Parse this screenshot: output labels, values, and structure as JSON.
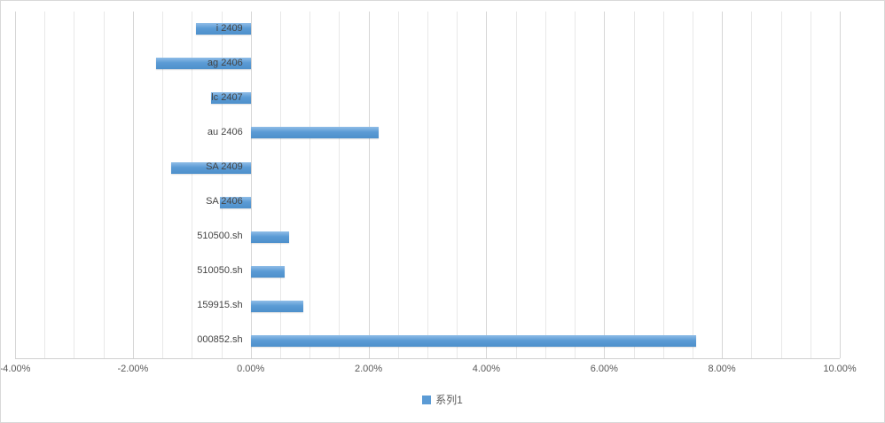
{
  "chart_data": {
    "type": "bar",
    "orientation": "horizontal",
    "title": "",
    "categories": [
      "i 2409",
      "ag 2406",
      "lc 2407",
      "au 2406",
      "SA 2409",
      "SA 2406",
      "510500.sh",
      "510050.sh",
      "159915.sh",
      "000852.sh"
    ],
    "series": [
      {
        "name": "系列1",
        "values": [
          -0.93,
          -1.6,
          -0.68,
          2.18,
          -1.35,
          -0.52,
          0.65,
          0.57,
          0.89,
          7.56
        ]
      }
    ],
    "value_unit": "%",
    "xlim": [
      -4,
      10
    ],
    "x_tick_labels": [
      "-4.00%",
      "-2.00%",
      "0.00%",
      "2.00%",
      "4.00%",
      "6.00%",
      "8.00%",
      "10.00%"
    ],
    "x_major_step": 2,
    "x_minor_step": 0.5,
    "grid": "on",
    "legend": {
      "position": "bottom",
      "entries": [
        "系列1"
      ]
    },
    "colors": {
      "bar": "#5B9BD5",
      "grid_minor": "#E8E8E8",
      "grid_major": "#D6D6D6",
      "axis": "#D0D0D0",
      "text": "#595959"
    }
  }
}
